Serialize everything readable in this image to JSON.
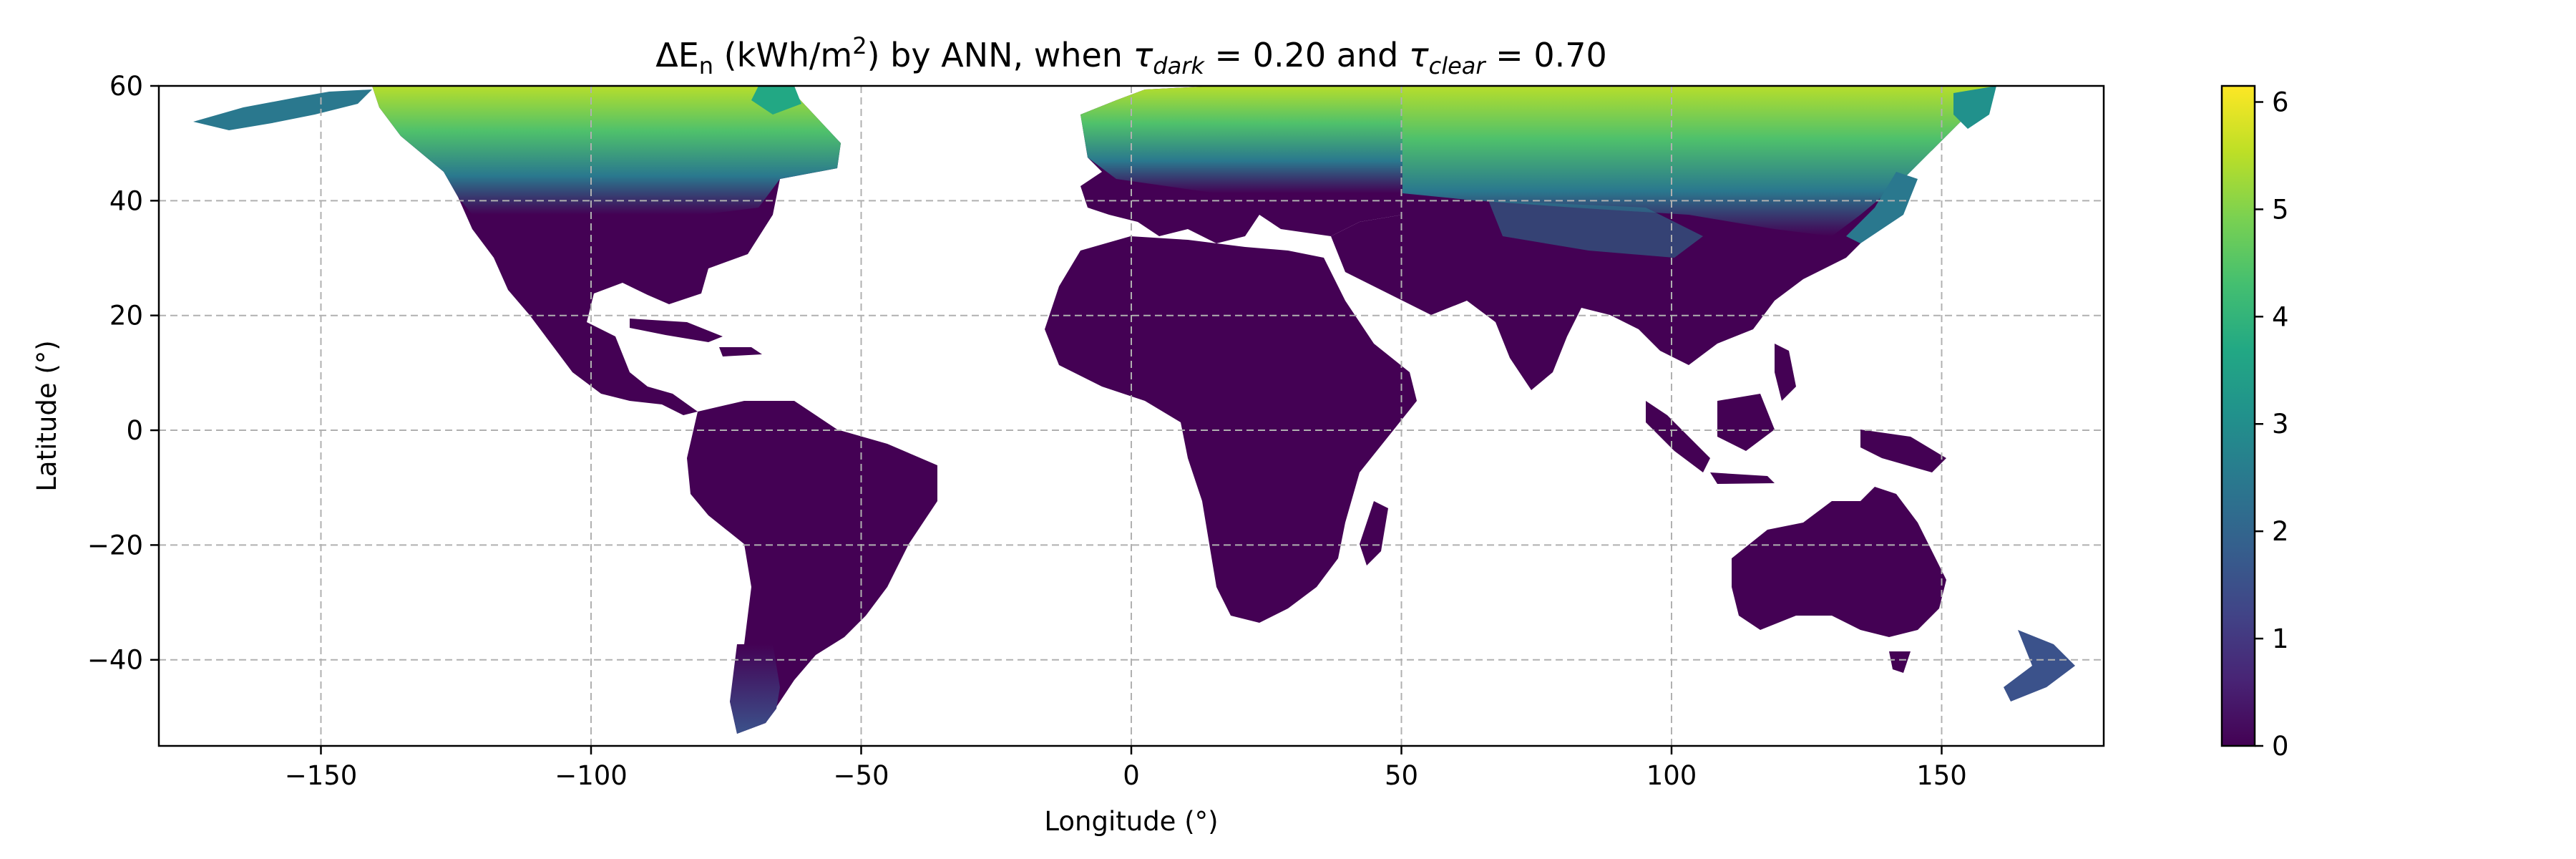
{
  "chart_data": {
    "type": "heatmap",
    "title_parts": {
      "t1": "ΔE",
      "t1_sub": "n",
      "t2": " (kWh/m",
      "t2_sup": "2",
      "t3": ") by ANN, when ",
      "tau_dark": "τ",
      "tau_dark_sub": "dark",
      "t4": " = 0.20 and ",
      "tau_clear": "τ",
      "tau_clear_sub": "clear",
      "t5": " = 0.70"
    },
    "xlabel": "Longitude (°)",
    "ylabel": "Latitude (°)",
    "xlim": [
      -180,
      180
    ],
    "ylim": [
      -55,
      60
    ],
    "xticks": [
      -150,
      -100,
      -50,
      0,
      50,
      100,
      150
    ],
    "xtick_labels": [
      "−150",
      "−100",
      "−50",
      "0",
      "50",
      "100",
      "150"
    ],
    "yticks": [
      60,
      40,
      20,
      0,
      -20,
      -40
    ],
    "ytick_labels": [
      "60",
      "40",
      "20",
      "0",
      "−20",
      "−40"
    ],
    "grid": true,
    "colormap": "viridis",
    "clim": [
      0,
      6.15
    ],
    "colorbar_ticks": [
      0,
      1,
      2,
      3,
      4,
      5,
      6
    ],
    "colorbar_tick_labels": [
      "0",
      "1",
      "2",
      "3",
      "4",
      "5",
      "6"
    ],
    "colors": {
      "low": "#440154",
      "mid": "#21918c",
      "high": "#fde725",
      "ocean": "#ffffff"
    },
    "regions": [
      {
        "name": "North America north",
        "value_range": [
          1.5,
          5.5
        ]
      },
      {
        "name": "Europe and Siberia north",
        "value_range": [
          2.0,
          5.8
        ]
      },
      {
        "name": "Central Asia / China",
        "value_range": [
          1.0,
          5.5
        ]
      },
      {
        "name": "Southern Patagonia",
        "value_range": [
          0.5,
          1.5
        ]
      },
      {
        "name": "New Zealand",
        "value_range": [
          0.5,
          1.5
        ]
      },
      {
        "name": "Tropics and subtropics",
        "value_range": [
          0,
          0.3
        ]
      }
    ]
  }
}
